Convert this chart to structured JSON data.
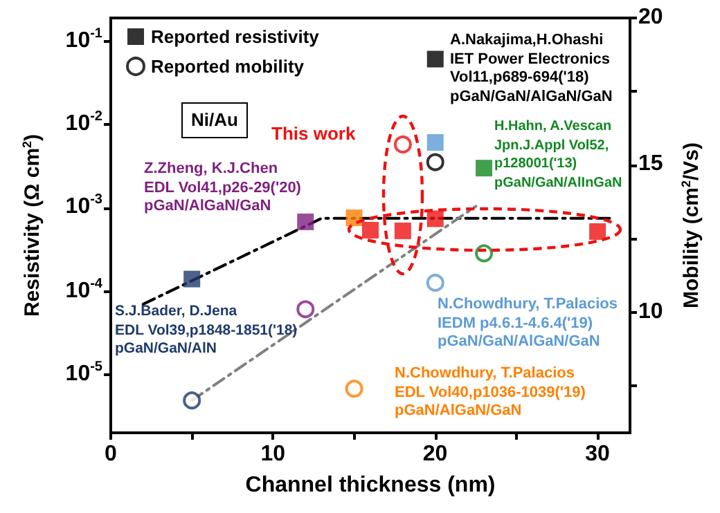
{
  "chart_data": {
    "type": "scatter",
    "xlabel": "Channel thickness (nm)",
    "ylabel": "Resistivity (Ω cm$^{2}$)",
    "y2label": "Mobility (cm$^{2}$/Vs)",
    "xlim": [
      0,
      32
    ],
    "xticks": [
      0,
      {
        "value": 5,
        "label": null
      },
      10,
      {
        "value": 15,
        "label": null
      },
      20,
      {
        "value": 25,
        "label": null
      },
      30
    ],
    "ylim": [
      2e-06,
      0.19
    ],
    "yticks": [
      {
        "value": 0.1,
        "label": "10$^{-1}$"
      },
      {
        "value": 0.01,
        "label": "10$^{-2}$"
      },
      {
        "value": 0.001,
        "label": "10$^{-3}$"
      },
      {
        "value": 0.0001,
        "label": "10$^{-4}$"
      },
      {
        "value": 1e-05,
        "label": "10$^{-5}$"
      }
    ],
    "y2lim": [
      5.9,
      20
    ],
    "y2ticks": [
      {
        "value": 7.5,
        "label": null
      },
      10,
      {
        "value": 12.5,
        "label": null
      },
      15,
      {
        "value": 17.5,
        "label": null
      },
      20
    ],
    "log": "y",
    "grid": false,
    "legend": "top left",
    "series": [
      {
        "type": "line",
        "color": "#000000",
        "line_style": "dashed",
        "marker": "none",
        "x": [
          2,
          13,
          31
        ],
        "values": [
          7e-05,
          0.00075,
          0.00075
        ]
      },
      {
        "type": "line",
        "color": "#808080",
        "axis": "y2",
        "line_style": "dashed",
        "marker": "none",
        "x": [
          5,
          22.5
        ],
        "values": [
          7,
          13.6
        ]
      },
      {
        "name": "Reported resistivity",
        "marker": "square",
        "color": "#000000",
        "x": [
          5,
          12,
          15,
          16,
          18,
          20,
          30,
          20,
          23,
          20
        ],
        "values": [
          0.00014,
          0.00068,
          0.00076,
          0.00054,
          0.00053,
          0.00074,
          0.00052,
          0.0061,
          0.003,
          0.061
        ],
        "colors": [
          "#1f3b6e",
          "#7f1f7f",
          "#ff8000",
          "#ee1111",
          "#ee1111",
          "#ee1111",
          "#ee1111",
          "#5b9bd5",
          "#118822",
          "#000000"
        ]
      },
      {
        "name": "Reported mobility",
        "marker": "circle",
        "axis": "y2",
        "color": "#000000",
        "x": [
          5,
          12,
          15,
          18,
          20,
          23,
          20
        ],
        "values": [
          7,
          10.1,
          7.4,
          15.7,
          15.1,
          12,
          11
        ],
        "colors": [
          "#1f3b6e",
          "#7f1f7f",
          "#ff8000",
          "#ee1111",
          "#000000",
          "#118822",
          "#5b9bd5"
        ]
      }
    ],
    "annotations": [
      "Ni/Au",
      "This work",
      "Z.Zheng, K.J.Chen\nEDL Vol41,p26-29('20)\npGaN/AlGaN/GaN",
      "A.Nakajima,H.Ohashi\nIET Power Electronics\nVol11,p689-694('18)\npGaN/GaN/AlGaN/GaN",
      "H.Hahn, A.Vescan\nJpn.J.Appl Vol52,\np128001('13)\npGaN/GaN/AlInGaN",
      "S.J.Bader, D.Jena\nEDL Vol39,p1848-1851('18)\npGaN/GaN/AlN",
      "N.Chowdhury, T.Palacios\nIEDM p4.6.1-4.6.4('19)\npGaN/GaN/AlGaN/GaN",
      "N.Chowdhury, T.Palacios\nEDL Vol40,p1036-1039('19)\npGaN/AlGaN/GaN"
    ]
  }
}
